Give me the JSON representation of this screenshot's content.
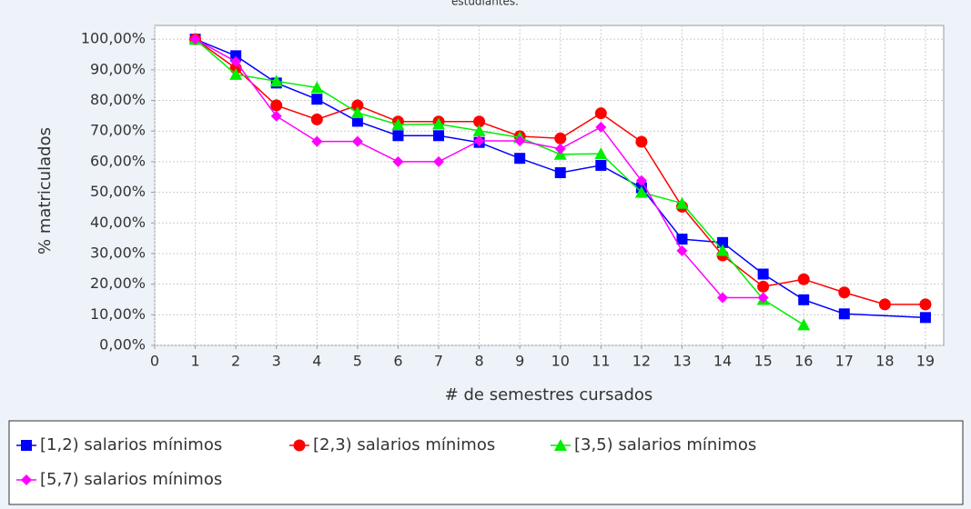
{
  "chart_data": {
    "type": "line",
    "title": "estudiantes.",
    "x_label": "# de semestres cursados",
    "y_label": "% matriculados",
    "xlim": [
      0,
      19.45
    ],
    "xticks": [
      0,
      1,
      2,
      3,
      4,
      5,
      6,
      7,
      8,
      9,
      10,
      11,
      12,
      13,
      14,
      15,
      16,
      17,
      18,
      19
    ],
    "ylim": [
      0,
      104.5
    ],
    "yticks": [
      {
        "value": 0,
        "label": "0,00%"
      },
      {
        "value": 10,
        "label": "10,00%"
      },
      {
        "value": 20,
        "label": "20,00%"
      },
      {
        "value": 30,
        "label": "30,00%"
      },
      {
        "value": 40,
        "label": "40,00%"
      },
      {
        "value": 50,
        "label": "50,00%"
      },
      {
        "value": 60,
        "label": "60,00%"
      },
      {
        "value": 70,
        "label": "70,00%"
      },
      {
        "value": 80,
        "label": "80,00%"
      },
      {
        "value": 90,
        "label": "90,00%"
      },
      {
        "value": 100,
        "label": "100,00%"
      }
    ],
    "grid": true,
    "legend": "bottom",
    "series": [
      {
        "name": "[1,2) salarios mínimos",
        "color": "#0000ff",
        "marker": "square",
        "x": [
          1,
          2,
          3,
          4,
          5,
          6,
          7,
          8,
          9,
          10,
          11,
          12,
          13,
          14,
          15,
          16,
          17,
          19
        ],
        "values": [
          100,
          94.6,
          85.7,
          80.4,
          73.2,
          68.5,
          68.5,
          66.3,
          61.1,
          56.4,
          58.8,
          51.5,
          34.7,
          33.6,
          23.3,
          14.9,
          10.3,
          9.1
        ]
      },
      {
        "name": "[2,3) salarios mínimos",
        "color": "#ff0000",
        "marker": "circle",
        "x": [
          1,
          2,
          3,
          4,
          5,
          6,
          7,
          8,
          9,
          10,
          11,
          12,
          13,
          14,
          15,
          16,
          17,
          18,
          19
        ],
        "values": [
          100,
          90.5,
          78.4,
          73.8,
          78.4,
          73.1,
          73.1,
          73.1,
          68.3,
          67.6,
          75.8,
          66.5,
          45.3,
          29.4,
          19.2,
          21.6,
          17.3,
          13.4,
          13.4
        ]
      },
      {
        "name": "[3,5) salarios mínimos",
        "color": "#00ee00",
        "marker": "triangle",
        "x": [
          1,
          2,
          3,
          4,
          5,
          6,
          7,
          8,
          9,
          10,
          11,
          12,
          13,
          14,
          15,
          16
        ],
        "values": [
          100,
          88.5,
          86.3,
          84.2,
          76.0,
          72.1,
          72.3,
          70.1,
          67.9,
          62.4,
          62.6,
          50.0,
          46.4,
          31.0,
          15.0,
          6.7
        ]
      },
      {
        "name": "[5,7) salarios mínimos",
        "color": "#ff00ff",
        "marker": "diamond",
        "x": [
          1,
          2,
          3,
          4,
          5,
          6,
          7,
          8,
          9,
          10,
          11,
          12,
          13,
          14,
          15
        ],
        "values": [
          100,
          92.7,
          74.9,
          66.6,
          66.6,
          60.0,
          60.0,
          66.8,
          66.8,
          64.2,
          71.3,
          53.8,
          30.9,
          15.6,
          15.6
        ]
      }
    ]
  }
}
